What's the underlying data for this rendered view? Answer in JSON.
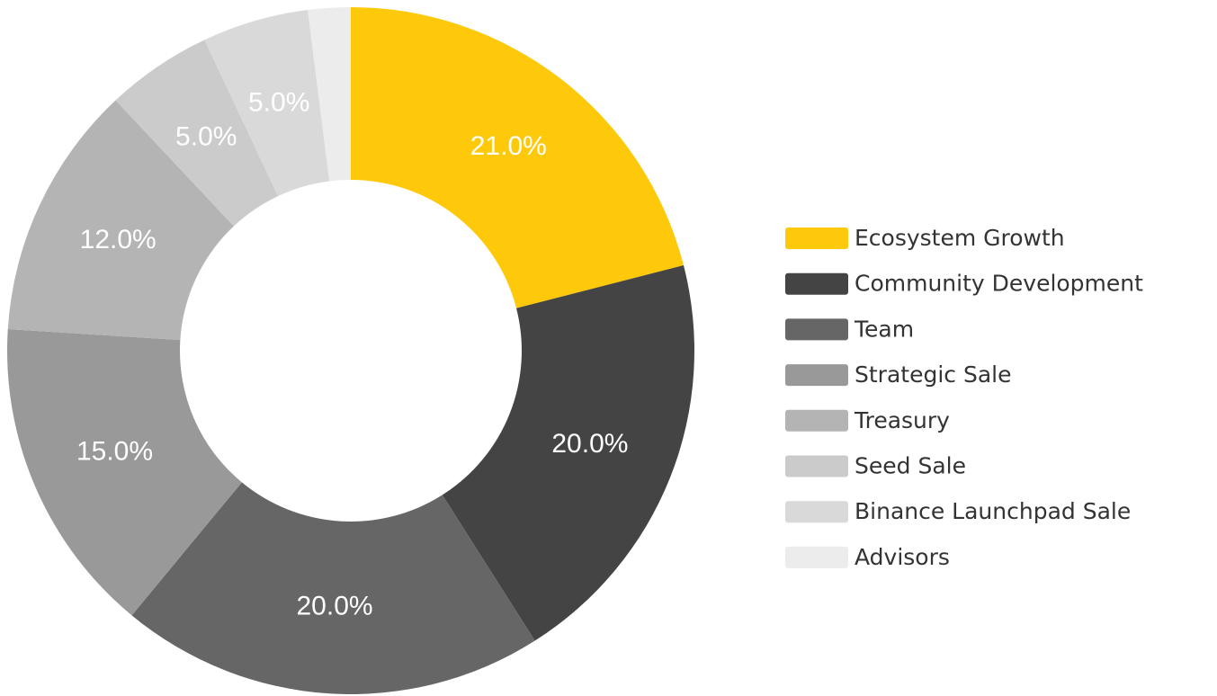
{
  "chart_data": {
    "type": "donut",
    "categories": [
      "Ecosystem Growth",
      "Community Development",
      "Team",
      "Strategic Sale",
      "Treasury",
      "Seed Sale",
      "Binance Launchpad Sale",
      "Advisors"
    ],
    "values": [
      21,
      20,
      20,
      15,
      12,
      5,
      5,
      2
    ],
    "value_labels": [
      "21.0%",
      "20.0%",
      "20.0%",
      "15.0%",
      "12.0%",
      "5.0%",
      "5.0%",
      null
    ],
    "colors": [
      "#fec90a",
      "#444444",
      "#666666",
      "#999999",
      "#b4b4b4",
      "#cbcbcb",
      "#d9d9d9",
      "#ececec"
    ],
    "legend": "right"
  }
}
